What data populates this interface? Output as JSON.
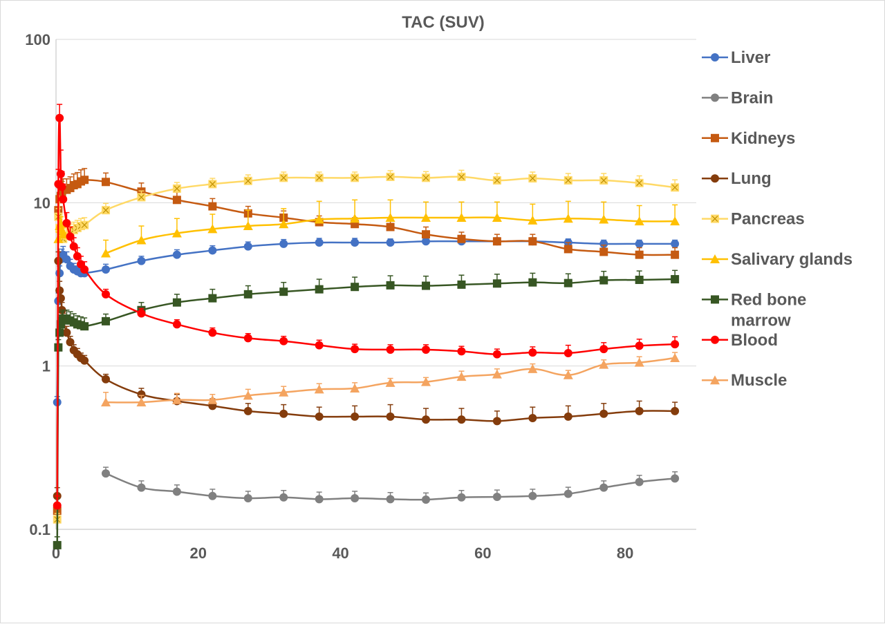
{
  "chart_data": {
    "type": "line",
    "title": "TAC (SUV)",
    "xlabel": "",
    "ylabel": "",
    "y_scale": "log",
    "ylim": [
      0.1,
      100
    ],
    "xlim": [
      0,
      90
    ],
    "x_ticks": [
      "0",
      "20",
      "40",
      "60",
      "80"
    ],
    "y_ticks": [
      "0.1",
      "1",
      "10",
      "100"
    ],
    "grid": "horizontal major lines",
    "legend_position": "right",
    "x": [
      0.17,
      0.33,
      0.5,
      0.67,
      0.83,
      1,
      1.5,
      2,
      2.5,
      3,
      3.5,
      4,
      7,
      12,
      17,
      22,
      27,
      32,
      37,
      42,
      47,
      52,
      57,
      62,
      67,
      72,
      77,
      82,
      87
    ],
    "series": [
      {
        "name": "Liver",
        "color": "#4472C4",
        "marker": "circle",
        "values": [
          0.6,
          2.5,
          3.7,
          4.5,
          4.7,
          4.8,
          4.5,
          4.1,
          3.9,
          3.8,
          3.7,
          3.7,
          3.9,
          4.4,
          4.8,
          5.1,
          5.4,
          5.6,
          5.7,
          5.7,
          5.7,
          5.8,
          5.8,
          5.8,
          5.8,
          5.7,
          5.6,
          5.6,
          5.6
        ],
        "error": [
          0.05,
          0.3,
          0.4,
          0.5,
          0.5,
          0.6,
          0.5,
          0.4,
          0.35,
          0.3,
          0.3,
          0.3,
          0.3,
          0.3,
          0.35,
          0.35,
          0.35,
          0.35,
          0.35,
          0.35,
          0.3,
          0.3,
          0.3,
          0.3,
          0.3,
          0.3,
          0.3,
          0.3,
          0.3
        ]
      },
      {
        "name": "Brain",
        "color": "#808080",
        "marker": "circle",
        "values": [
          null,
          null,
          null,
          null,
          null,
          null,
          null,
          null,
          null,
          null,
          null,
          null,
          0.22,
          0.18,
          0.17,
          0.16,
          0.155,
          0.157,
          0.153,
          0.155,
          0.153,
          0.152,
          0.157,
          0.158,
          0.16,
          0.165,
          0.18,
          0.195,
          0.205
        ],
        "error": [
          null,
          null,
          null,
          null,
          null,
          null,
          null,
          null,
          null,
          null,
          null,
          null,
          0.02,
          0.018,
          0.017,
          0.016,
          0.016,
          0.016,
          0.016,
          0.016,
          0.015,
          0.015,
          0.016,
          0.016,
          0.016,
          0.016,
          0.018,
          0.019,
          0.02
        ]
      },
      {
        "name": "Kidneys",
        "color": "#C55A11",
        "marker": "square",
        "values": [
          0.13,
          9.0,
          10.5,
          11.0,
          11.5,
          12.0,
          12.0,
          12.3,
          12.8,
          13.0,
          13.5,
          13.8,
          13.4,
          11.7,
          10.4,
          9.5,
          8.6,
          8.1,
          7.6,
          7.4,
          7.1,
          6.4,
          6.0,
          5.8,
          5.8,
          5.2,
          5.0,
          4.8,
          4.8
        ],
        "error": [
          0.01,
          1.5,
          1.8,
          1.9,
          2.0,
          2.0,
          2.0,
          2.1,
          2.2,
          2.3,
          2.4,
          2.4,
          1.8,
          1.5,
          1.2,
          1.1,
          0.9,
          0.8,
          0.7,
          0.7,
          0.7,
          0.7,
          0.6,
          0.6,
          0.6,
          0.5,
          0.5,
          0.5,
          0.5
        ]
      },
      {
        "name": "Lung",
        "color": "#843C0C",
        "marker": "circle",
        "values": [
          0.16,
          4.4,
          2.9,
          2.6,
          2.2,
          1.9,
          1.6,
          1.4,
          1.25,
          1.18,
          1.12,
          1.08,
          0.83,
          0.67,
          0.61,
          0.57,
          0.53,
          0.51,
          0.49,
          0.49,
          0.49,
          0.47,
          0.47,
          0.46,
          0.48,
          0.49,
          0.51,
          0.53,
          0.53
        ],
        "error": [
          0.02,
          0.6,
          0.4,
          0.3,
          0.25,
          0.2,
          0.15,
          0.12,
          0.1,
          0.1,
          0.08,
          0.08,
          0.06,
          0.06,
          0.06,
          0.06,
          0.06,
          0.07,
          0.07,
          0.08,
          0.09,
          0.08,
          0.08,
          0.07,
          0.08,
          0.08,
          0.08,
          0.08,
          0.07
        ]
      },
      {
        "name": "Pancreas",
        "color": "#FFD966",
        "marker": "star",
        "values": [
          0.115,
          8.2,
          7.0,
          6.5,
          6.2,
          6.0,
          6.3,
          6.6,
          6.8,
          7.0,
          7.2,
          7.3,
          9.0,
          10.8,
          12.2,
          13.0,
          13.6,
          14.2,
          14.2,
          14.2,
          14.4,
          14.2,
          14.4,
          13.7,
          14.1,
          13.7,
          13.7,
          13.2,
          12.4
        ],
        "error": [
          0.01,
          1.0,
          0.9,
          0.8,
          0.8,
          0.8,
          0.8,
          0.8,
          0.8,
          0.8,
          0.8,
          0.8,
          0.9,
          1.0,
          1.1,
          1.1,
          1.2,
          1.2,
          1.2,
          1.2,
          1.3,
          1.3,
          1.4,
          1.4,
          1.3,
          1.4,
          1.4,
          1.4,
          1.4
        ]
      },
      {
        "name": "Salivary glands",
        "color": "#FFC000",
        "marker": "triangle",
        "values": [
          null,
          6.0,
          7.2,
          7.5,
          6.8,
          6.4,
          null,
          null,
          null,
          null,
          null,
          null,
          4.9,
          5.9,
          6.5,
          6.9,
          7.2,
          7.4,
          7.9,
          8.0,
          8.1,
          8.1,
          8.1,
          8.1,
          7.8,
          8.0,
          7.9,
          7.7,
          7.7
        ],
        "error": [
          null,
          0.6,
          0.7,
          0.7,
          0.6,
          0.6,
          null,
          null,
          null,
          null,
          null,
          null,
          1.0,
          1.3,
          1.5,
          1.6,
          1.8,
          1.8,
          2.3,
          2.4,
          2.3,
          2.0,
          2.0,
          2.0,
          2.0,
          2.2,
          2.2,
          1.9,
          2.0
        ]
      },
      {
        "name": "Red bone marrow",
        "color": "#375623",
        "marker": "square",
        "values": [
          0.08,
          1.3,
          1.6,
          1.8,
          1.9,
          1.95,
          1.95,
          1.9,
          1.85,
          1.8,
          1.78,
          1.75,
          1.88,
          2.2,
          2.45,
          2.6,
          2.75,
          2.85,
          2.95,
          3.05,
          3.12,
          3.1,
          3.15,
          3.2,
          3.25,
          3.22,
          3.35,
          3.37,
          3.4
        ],
        "error": [
          0.01,
          0.15,
          0.2,
          0.25,
          0.25,
          0.25,
          0.25,
          0.25,
          0.24,
          0.23,
          0.22,
          0.22,
          0.2,
          0.25,
          0.3,
          0.35,
          0.35,
          0.4,
          0.45,
          0.45,
          0.45,
          0.45,
          0.45,
          0.45,
          0.45,
          0.45,
          0.45,
          0.45,
          0.45
        ]
      },
      {
        "name": "Blood",
        "color": "#FF0000",
        "marker": "circle",
        "values": [
          0.14,
          13.0,
          33.0,
          15.0,
          12.5,
          10.5,
          7.5,
          6.2,
          5.4,
          4.7,
          4.2,
          3.9,
          2.75,
          2.1,
          1.8,
          1.6,
          1.48,
          1.42,
          1.34,
          1.27,
          1.26,
          1.26,
          1.23,
          1.18,
          1.21,
          1.2,
          1.27,
          1.33,
          1.36
        ],
        "error": [
          0.02,
          3.0,
          7.0,
          6.0,
          3.0,
          2.5,
          1.2,
          0.9,
          0.7,
          0.6,
          0.5,
          0.45,
          0.2,
          0.15,
          0.12,
          0.11,
          0.1,
          0.1,
          0.1,
          0.09,
          0.09,
          0.09,
          0.09,
          0.09,
          0.1,
          0.14,
          0.12,
          0.13,
          0.15
        ]
      },
      {
        "name": "Muscle",
        "color": "#F4A460",
        "marker": "triangle",
        "values": [
          null,
          null,
          null,
          null,
          null,
          null,
          null,
          null,
          null,
          null,
          null,
          null,
          0.6,
          0.6,
          0.62,
          0.62,
          0.66,
          0.69,
          0.72,
          0.73,
          0.79,
          0.8,
          0.86,
          0.89,
          0.96,
          0.88,
          1.02,
          1.05,
          1.12
        ],
        "error": [
          null,
          null,
          null,
          null,
          null,
          null,
          null,
          null,
          null,
          null,
          null,
          null,
          0.09,
          0.06,
          0.06,
          0.05,
          0.06,
          0.06,
          0.06,
          0.06,
          0.05,
          0.05,
          0.07,
          0.07,
          0.07,
          0.06,
          0.07,
          0.09,
          0.09
        ]
      }
    ]
  }
}
